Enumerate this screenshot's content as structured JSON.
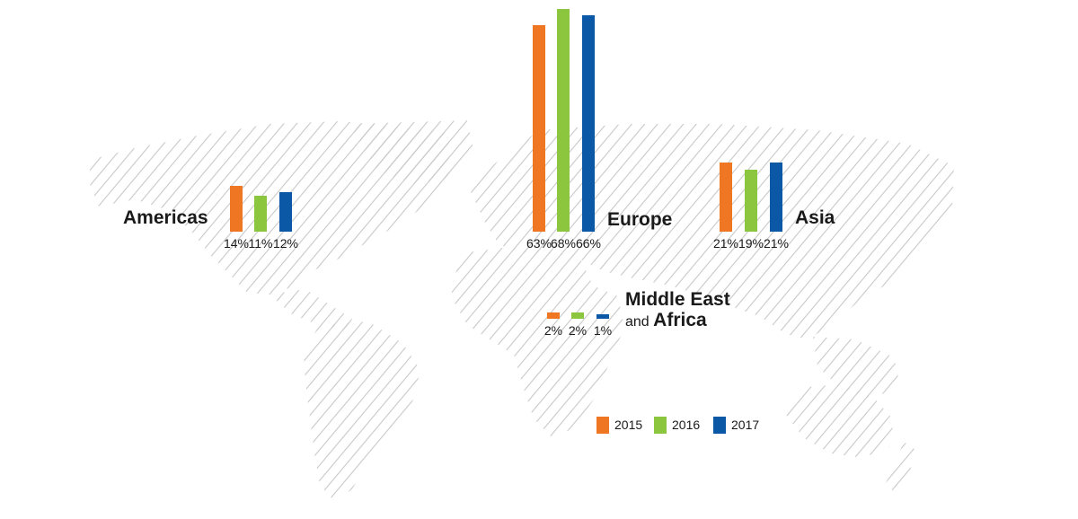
{
  "chart_data": {
    "type": "bar",
    "categories": [
      "Americas",
      "Europe",
      "Asia",
      "Middle East and Africa"
    ],
    "series": [
      {
        "name": "2015",
        "values": [
          14,
          63,
          21,
          2
        ],
        "labels": [
          "14%",
          "63%",
          "21%",
          "2%"
        ]
      },
      {
        "name": "2016",
        "values": [
          11,
          68,
          19,
          2
        ],
        "labels": [
          "11%",
          "68%",
          "19%",
          "2%"
        ]
      },
      {
        "name": "2017",
        "values": [
          12,
          66,
          21,
          1
        ],
        "labels": [
          "12%",
          "66%",
          "21%",
          "1%"
        ]
      }
    ],
    "unit": "%",
    "title": "",
    "xlabel": "",
    "ylabel": "",
    "ylim": [
      0,
      70
    ],
    "grid": false,
    "legend_position": "bottom-right"
  },
  "regions": {
    "americas": "Americas",
    "europe": "Europe",
    "asia": "Asia",
    "mea_line1": "Middle East",
    "mea_line2a": "and",
    "mea_line2b": "Africa"
  },
  "colors": {
    "2015": "#ef7622",
    "2016": "#8cc63f",
    "2017": "#0b59a6",
    "map_hatch": "#c8c8c8",
    "text": "#1a1a1a"
  }
}
